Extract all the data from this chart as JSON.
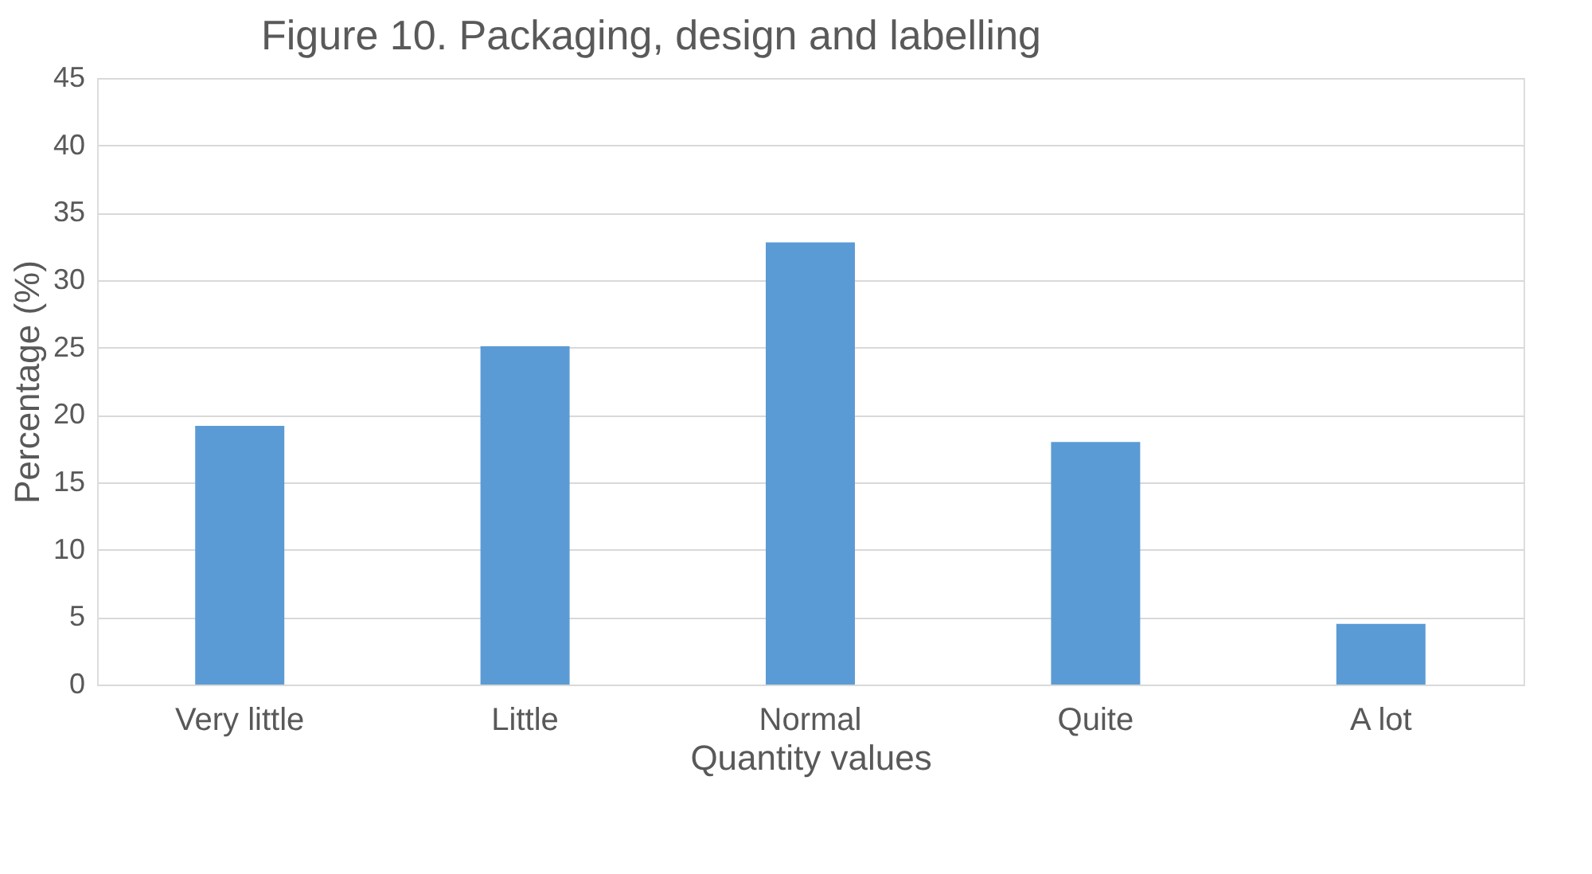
{
  "chart_data": {
    "type": "bar",
    "title": "Figure 10. Packaging, design and labelling",
    "xlabel": "Quantity values",
    "ylabel": "Percentage (%)",
    "categories": [
      "Very little",
      "Little",
      "Normal",
      "Quite",
      "A lot"
    ],
    "values": [
      19.2,
      25.1,
      32.8,
      18.0,
      4.5
    ],
    "color": "#5b9bd5",
    "ylim": [
      0,
      45
    ],
    "yticks": [
      0,
      5,
      10,
      15,
      20,
      25,
      30,
      35,
      40,
      45
    ],
    "grid": "y"
  }
}
